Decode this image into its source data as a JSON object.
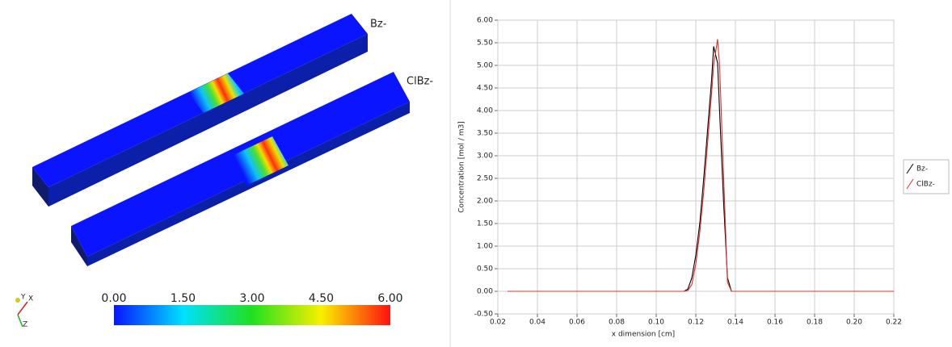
{
  "chart_data": {
    "type": "line",
    "x_label": "x dimension [cm]",
    "y_label": "Concentration [mol / m3]",
    "x": [
      0.025,
      0.05,
      0.075,
      0.1,
      0.114,
      0.116,
      0.118,
      0.12,
      0.122,
      0.124,
      0.126,
      0.128,
      0.129,
      0.131,
      0.132,
      0.134,
      0.136,
      0.138,
      0.14,
      0.16,
      0.18,
      0.2,
      0.22
    ],
    "series": [
      {
        "name": "Bz-",
        "color": "#000000",
        "values": [
          0,
          0,
          0,
          0,
          0,
          0.05,
          0.3,
          0.8,
          1.5,
          2.5,
          3.6,
          4.7,
          5.42,
          5.05,
          4.0,
          2.0,
          0.3,
          0,
          0,
          0,
          0,
          0,
          0
        ]
      },
      {
        "name": "ClBz-",
        "color": "#e03030",
        "values": [
          0,
          0,
          0,
          0,
          0,
          0.02,
          0.15,
          0.6,
          1.3,
          2.2,
          3.3,
          4.4,
          5.0,
          5.58,
          5.0,
          2.6,
          0.2,
          0,
          0,
          0,
          0,
          0,
          0
        ]
      }
    ],
    "xlim": [
      0.02,
      0.22
    ],
    "xticks": [
      0.02,
      0.04,
      0.06,
      0.08,
      {
        "value": 0.1,
        "label": "0.10"
      },
      0.12,
      0.14,
      0.16,
      0.18,
      {
        "value": 0.2,
        "label": "0.20"
      },
      0.22
    ],
    "ylim": [
      -0.5,
      6
    ],
    "yticks": [
      {
        "value": -0.5,
        "label": "-0.50"
      },
      {
        "value": 0,
        "label": "0.00"
      },
      {
        "value": 0.5,
        "label": "0.50"
      },
      {
        "value": 1,
        "label": "1.00"
      },
      {
        "value": 1.5,
        "label": "1.50"
      },
      {
        "value": 2,
        "label": "2.00"
      },
      {
        "value": 2.5,
        "label": "2.50"
      },
      {
        "value": 3,
        "label": "3.00"
      },
      {
        "value": 3.5,
        "label": "3.50"
      },
      {
        "value": 4,
        "label": "4.00"
      },
      {
        "value": 4.5,
        "label": "4.50"
      },
      {
        "value": 5,
        "label": "5.00"
      },
      {
        "value": 5.5,
        "label": "5.50"
      },
      {
        "value": 6,
        "label": "6.00"
      }
    ],
    "grid": true,
    "legend": "right"
  },
  "render": {
    "labels": [
      "Bz-",
      "ClBz-"
    ],
    "colorbar_ticks": [
      {
        "value": 0,
        "label": "0.00"
      },
      {
        "value": 1.5,
        "label": "1.50"
      },
      {
        "value": 3,
        "label": "3.00"
      },
      {
        "value": 4.5,
        "label": "4.50"
      },
      {
        "value": 6,
        "label": "6.00"
      }
    ],
    "axes_labels": [
      "Y",
      "X",
      "Z"
    ]
  }
}
